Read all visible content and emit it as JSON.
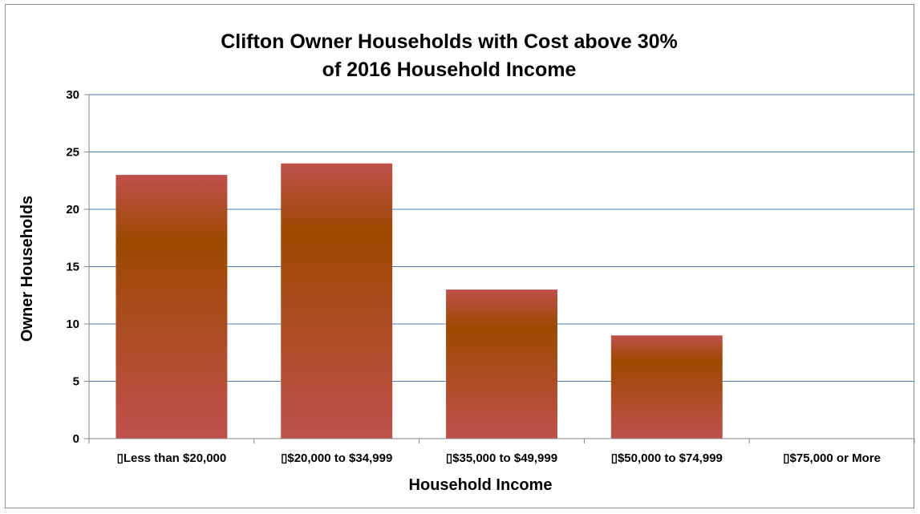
{
  "chart_data": {
    "type": "bar",
    "title": [
      "Clifton Owner Households with Cost above 30%",
      "of 2016 Household Income"
    ],
    "xlabel": "Household Income",
    "ylabel": "Owner Households",
    "categories": [
      "▯Less than $20,000",
      "▯$20,000 to $34,999",
      "▯$35,000 to $49,999",
      "▯$50,000 to $74,999",
      "▯$75,000 or More"
    ],
    "values": [
      23,
      24,
      13,
      9,
      0
    ],
    "ylim": [
      0,
      30
    ],
    "yticks": [
      0,
      5,
      10,
      15,
      20,
      25,
      30
    ],
    "grid": true,
    "legend": "none",
    "colors": {
      "bar_edge": "#c0504d",
      "bar_mid": "#9c4a00",
      "gridline": "#4a7ebb",
      "axis": "#868686"
    }
  }
}
